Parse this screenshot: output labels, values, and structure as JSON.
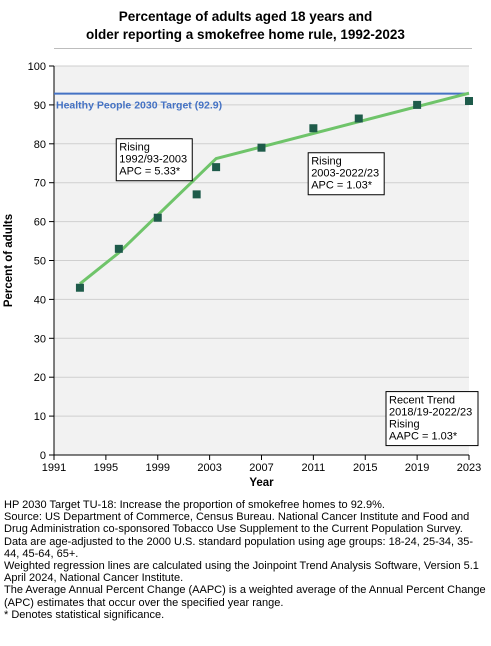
{
  "chart_data": {
    "type": "scatter",
    "title_lines": [
      "Percentage of adults aged 18 years and",
      "older reporting a smokefree home rule, 1992-2023"
    ],
    "xlabel": "Year",
    "ylabel": "Percent of adults",
    "xlim": [
      1991,
      2023
    ],
    "ylim": [
      0,
      100
    ],
    "xticks": [
      1991,
      1995,
      1999,
      2003,
      2007,
      2011,
      2015,
      2019,
      2023
    ],
    "yticks": [
      0,
      10,
      20,
      30,
      40,
      50,
      60,
      70,
      80,
      90,
      100
    ],
    "target": {
      "value": 92.9,
      "label": "Healthy People 2030 Target (92.9)",
      "color": "#4472c4"
    },
    "points": {
      "color": "#1e5b4a",
      "x": [
        1993,
        1996,
        1999,
        2002,
        2003.5,
        2007,
        2011,
        2014.5,
        2019,
        2023
      ],
      "y": [
        43,
        53,
        61,
        67,
        74,
        79,
        84,
        86.5,
        90,
        91
      ]
    },
    "trend": {
      "color": "#6fc46a",
      "x": [
        1993,
        1996,
        2003.5,
        2023
      ],
      "y": [
        44,
        52,
        76.2,
        93
      ]
    },
    "annotations": [
      {
        "lines": [
          "Rising",
          "1992/93-2003",
          "APC =  5.33*"
        ],
        "x": 1995.8,
        "y": 81.3
      },
      {
        "lines": [
          "Rising",
          "2003-2022/23",
          "APC =  1.03*"
        ],
        "x": 2010.6,
        "y": 77.7
      },
      {
        "lines": [
          "Recent Trend",
          "2018/19-2022/23",
          "Rising",
          "AAPC =  1.03*"
        ],
        "x": 2016.6,
        "y": 16.3
      }
    ]
  },
  "notes": [
    "HP 2030 Target TU-18: Increase the proportion of smokefree homes to 92.9%.",
    "Source: US Department of Commerce, Census Bureau. National Cancer Institute and Food and Drug Administration co-sponsored Tobacco Use Supplement to the Current Population Survey.",
    "Data are age-adjusted to the 2000 U.S. standard population using age groups: 18-24, 25-34, 35-44, 45-64, 65+.",
    "Weighted regression lines are calculated using the Joinpoint Trend Analysis Software, Version 5.1 April 2024, National Cancer Institute.",
    "The Average Annual Percent Change (AAPC) is a weighted average of the Annual Percent Change (APC) estimates that occur over the specified year range.",
    "* Denotes statistical significance."
  ]
}
